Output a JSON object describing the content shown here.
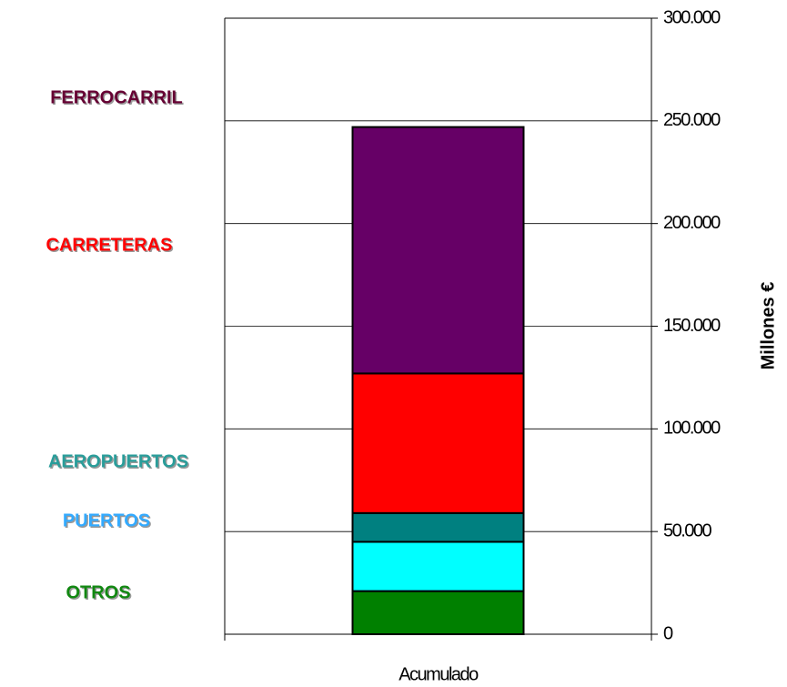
{
  "chart_data": {
    "type": "stacked_bar",
    "categories": [
      "Acumulado"
    ],
    "y2label": "Millones €",
    "series": [
      {
        "name": "OTROS",
        "color": "#008000",
        "label_color": "#118811",
        "values": [
          21000
        ],
        "axis": "y2"
      },
      {
        "name": "PUERTOS",
        "color": "#00ffff",
        "label_color": "#33aaff",
        "values": [
          24000
        ],
        "axis": "y2"
      },
      {
        "name": "AEROPUERTOS",
        "color": "#008080",
        "label_color": "#2a9d9a",
        "values": [
          14000
        ],
        "axis": "y2"
      },
      {
        "name": "CARRETERAS",
        "color": "#ff0000",
        "label_color": "#ff0000",
        "values": [
          68000
        ],
        "axis": "y2"
      },
      {
        "name": "FERROCARRIL",
        "color": "#660066",
        "label_color": "#660033",
        "values": [
          120000
        ],
        "axis": "y2"
      }
    ],
    "y2lim": [
      0,
      300000
    ],
    "y2ticks": [
      0,
      {
        "value": 50000,
        "label": "50.000"
      },
      {
        "value": 100000,
        "label": "100.000"
      },
      {
        "value": 150000,
        "label": "150.000"
      },
      {
        "value": 200000,
        "label": "200.000"
      },
      {
        "value": 250000,
        "label": "250.000"
      },
      {
        "value": 300000,
        "label": "300.000"
      }
    ],
    "grid": true
  }
}
